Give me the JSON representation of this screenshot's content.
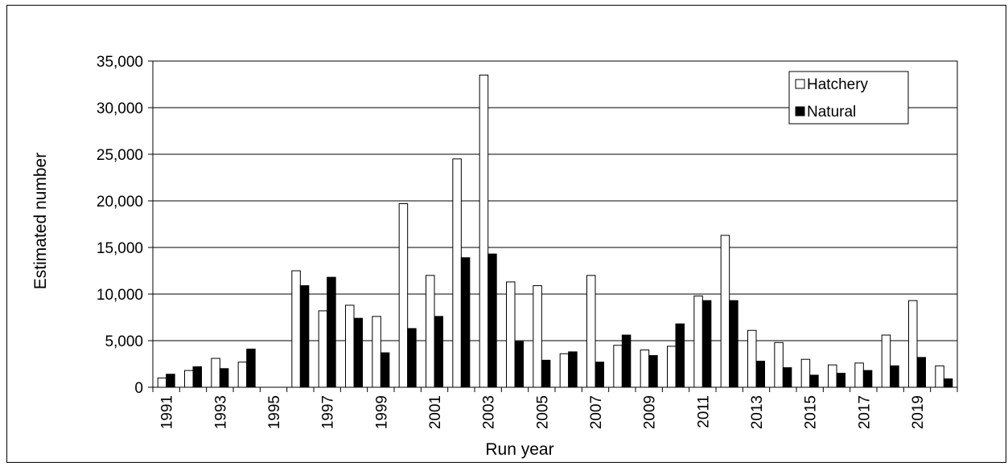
{
  "chart_data": {
    "type": "bar",
    "title": "",
    "xlabel": "Run year",
    "ylabel": "Estimated number",
    "ylim": [
      0,
      35000
    ],
    "y_ticks": [
      0,
      5000,
      10000,
      15000,
      20000,
      25000,
      30000,
      35000
    ],
    "y_tick_labels": [
      "0",
      "5,000",
      "10,000",
      "15,000",
      "20,000",
      "25,000",
      "30,000",
      "35,000"
    ],
    "grid": true,
    "legend_position": "top-right",
    "categories": [
      1991,
      1992,
      1993,
      1994,
      1995,
      1996,
      1997,
      1998,
      1999,
      2000,
      2001,
      2002,
      2003,
      2004,
      2005,
      2006,
      2007,
      2008,
      2009,
      2010,
      2011,
      2012,
      2013,
      2014,
      2015,
      2016,
      2017,
      2018,
      2019,
      2020
    ],
    "x_tick_labels": [
      "1991",
      "1993",
      "1995",
      "1997",
      "1999",
      "2001",
      "2003",
      "2005",
      "2007",
      "2009",
      "2011",
      "2013",
      "2015",
      "2017",
      "2019"
    ],
    "series": [
      {
        "name": "Hatchery",
        "color": "#ffffff",
        "values": [
          1000,
          1800,
          3100,
          2700,
          null,
          12500,
          8200,
          8800,
          7600,
          19700,
          12000,
          24500,
          33500,
          11300,
          10900,
          3600,
          12000,
          4500,
          4000,
          4400,
          9800,
          16300,
          6100,
          4800,
          3000,
          2400,
          2600,
          5600,
          9300,
          2300
        ]
      },
      {
        "name": "Natural",
        "color": "#000000",
        "values": [
          1400,
          2200,
          2000,
          4100,
          null,
          10900,
          11800,
          7400,
          3700,
          6300,
          7600,
          13900,
          14300,
          4900,
          2900,
          3800,
          2700,
          5600,
          3400,
          6800,
          9300,
          9300,
          2800,
          2100,
          1300,
          1500,
          1800,
          2300,
          3200,
          900
        ]
      }
    ]
  }
}
